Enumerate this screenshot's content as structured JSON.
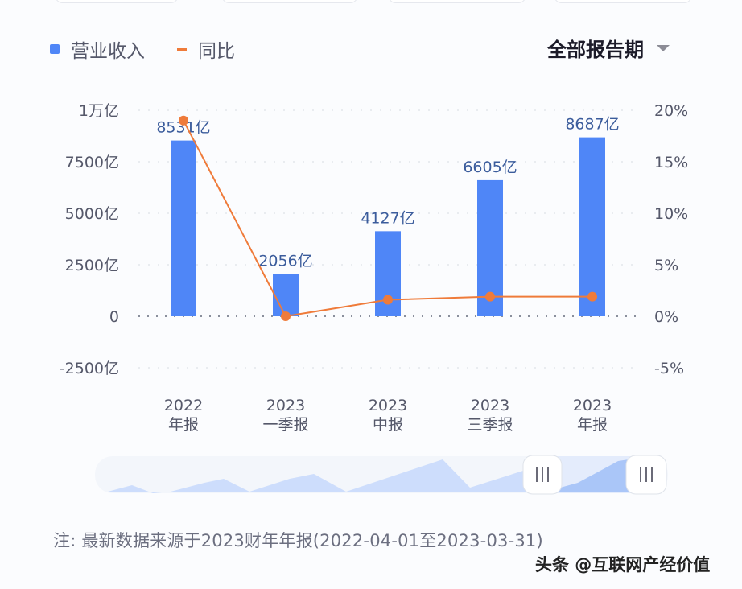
{
  "legend": {
    "bar_label": "营业收入",
    "line_label": "同比"
  },
  "period_selector": {
    "label": "全部报告期"
  },
  "chart_data": {
    "type": "bar+line",
    "categories": [
      "2022 年报",
      "2023 一季报",
      "2023 中报",
      "2023 三季报",
      "2023 年报"
    ],
    "category_lines": [
      [
        "2022",
        "年报"
      ],
      [
        "2023",
        "一季报"
      ],
      [
        "2023",
        "中报"
      ],
      [
        "2023",
        "三季报"
      ],
      [
        "2023",
        "年报"
      ]
    ],
    "series": [
      {
        "name": "营业收入",
        "type": "bar",
        "axis": "left",
        "unit": "亿",
        "values": [
          8531,
          2056,
          4127,
          6605,
          8687
        ],
        "labels": [
          "8531亿",
          "2056亿",
          "4127亿",
          "6605亿",
          "8687亿"
        ],
        "color": "#4f86f7"
      },
      {
        "name": "同比",
        "type": "line",
        "axis": "right",
        "unit": "%",
        "values": [
          19.0,
          0.0,
          1.6,
          1.9,
          1.9
        ],
        "color": "#ef7b3a"
      }
    ],
    "left_axis": {
      "ticks": [
        "1万亿",
        "7500亿",
        "5000亿",
        "2500亿",
        "0",
        "-2500亿"
      ],
      "range": [
        -2500,
        10000
      ]
    },
    "right_axis": {
      "ticks": [
        "20%",
        "15%",
        "10%",
        "5%",
        "0%",
        "-5%"
      ],
      "range": [
        -5,
        20
      ]
    },
    "grid": "dotted horizontal",
    "legend_position": "top-left"
  },
  "slider": {
    "handle_left_icon": "grip-icon",
    "handle_right_icon": "grip-icon"
  },
  "footer": {
    "note": "注: 最新数据来源于2023财年年报(2022-04-01至2023-03-31)",
    "watermark": "头条 @互联网产经价值"
  }
}
